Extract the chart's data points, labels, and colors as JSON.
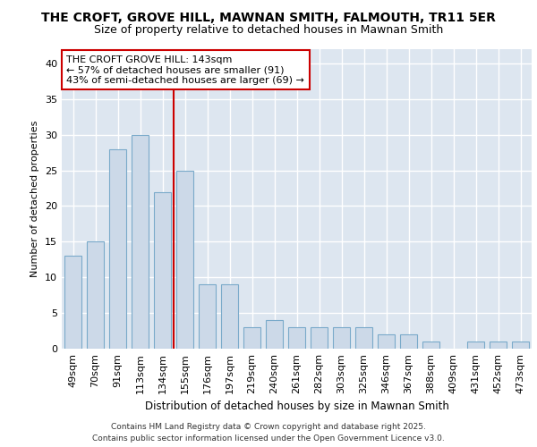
{
  "title1": "THE CROFT, GROVE HILL, MAWNAN SMITH, FALMOUTH, TR11 5ER",
  "title2": "Size of property relative to detached houses in Mawnan Smith",
  "xlabel": "Distribution of detached houses by size in Mawnan Smith",
  "ylabel": "Number of detached properties",
  "categories": [
    "49sqm",
    "70sqm",
    "91sqm",
    "113sqm",
    "134sqm",
    "155sqm",
    "176sqm",
    "197sqm",
    "219sqm",
    "240sqm",
    "261sqm",
    "282sqm",
    "303sqm",
    "325sqm",
    "346sqm",
    "367sqm",
    "388sqm",
    "409sqm",
    "431sqm",
    "452sqm",
    "473sqm"
  ],
  "values": [
    13,
    15,
    28,
    30,
    22,
    25,
    9,
    9,
    3,
    4,
    3,
    3,
    3,
    3,
    2,
    2,
    1,
    0,
    1,
    1,
    1
  ],
  "bar_color": "#ccd9e8",
  "bar_edge_color": "#7aaaca",
  "bar_width": 0.75,
  "vline_x": 4.5,
  "vline_color": "#cc0000",
  "annotation_text": "THE CROFT GROVE HILL: 143sqm\n← 57% of detached houses are smaller (91)\n43% of semi-detached houses are larger (69) →",
  "annotation_fontsize": 8,
  "annotation_box_color": "white",
  "annotation_edge_color": "#cc0000",
  "ylim": [
    0,
    42
  ],
  "yticks": [
    0,
    5,
    10,
    15,
    20,
    25,
    30,
    35,
    40
  ],
  "background_color": "#dde6f0",
  "grid_color": "white",
  "title1_fontsize": 10,
  "title2_fontsize": 9,
  "xlabel_fontsize": 8.5,
  "ylabel_fontsize": 8,
  "tick_fontsize": 8,
  "footer1": "Contains HM Land Registry data © Crown copyright and database right 2025.",
  "footer2": "Contains public sector information licensed under the Open Government Licence v3.0."
}
